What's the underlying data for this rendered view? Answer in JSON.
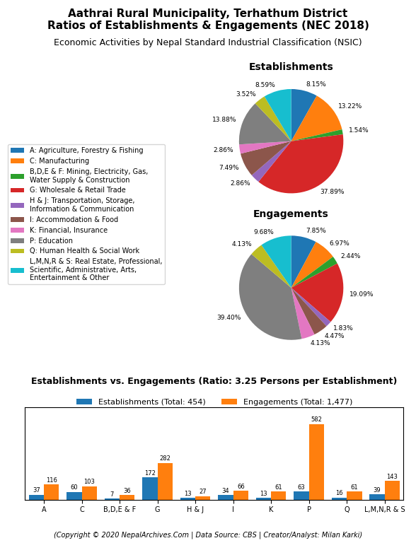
{
  "title": "Aathrai Rural Municipality, Terhathum District\nRatios of Establishments & Engagements (NEC 2018)",
  "subtitle": "Economic Activities by Nepal Standard Industrial Classification (NSIC)",
  "annotations": [
    "(Copyright © 2020 NepalArchives.Com | Data Source: CBS | Creator/Analyst: Milan Karki)"
  ],
  "chart_data": [
    {
      "type": "pie",
      "title": "Establishments",
      "categories": [
        "A: Agriculture, Forestry & Fishing",
        "C: Manufacturing",
        "B,D,E & F: Mining, Electricity, Gas,\nWater Supply & Construction",
        "G: Wholesale & Retail Trade",
        "H & J: Transportation, Storage,\nInformation & Communication",
        "I: Accommodation & Food",
        "K: Financial, Insurance",
        "P: Education",
        "Q: Human Health & Social Work",
        "L,M,N,R & S: Real Estate, Professional,\nScientific, Administrative, Arts,\nEntertainment & Other"
      ],
      "values": [
        8.15,
        13.22,
        1.54,
        37.89,
        2.86,
        7.49,
        2.86,
        13.88,
        3.52,
        8.59
      ],
      "value_labels": [
        "8.15%",
        "13.22%",
        "1.54%",
        "37.89%",
        "2.86%",
        "7.49%",
        "2.86%",
        "13.88%",
        "3.52%",
        "8.59%"
      ],
      "data_labels": true,
      "legend": "center left"
    },
    {
      "type": "pie",
      "title": "Engagements",
      "categories": [
        "A: Agriculture, Forestry & Fishing",
        "C: Manufacturing",
        "B,D,E & F: Mining, Electricity, Gas,\nWater Supply & Construction",
        "G: Wholesale & Retail Trade",
        "H & J: Transportation, Storage,\nInformation & Communication",
        "I: Accommodation & Food",
        "K: Financial, Insurance",
        "P: Education",
        "Q: Human Health & Social Work",
        "L,M,N,R & S: Real Estate, Professional,\nScientific, Administrative, Arts,\nEntertainment & Other"
      ],
      "values": [
        7.85,
        6.97,
        2.44,
        19.09,
        1.83,
        4.47,
        4.13,
        39.4,
        4.13,
        9.68
      ],
      "value_labels": [
        "7.85%",
        "6.97%",
        "2.44%",
        "19.09%",
        "1.83%",
        "4.47%",
        "4.13%",
        "39.40%",
        "4.13%",
        "9.68%"
      ],
      "data_labels": true
    },
    {
      "type": "bar",
      "title": "Establishments vs. Engagements (Ratio: 3.25 Persons per Establishment)",
      "categories": [
        "A",
        "C",
        "B,D,E & F",
        "G",
        "H & J",
        "I",
        "K",
        "P",
        "Q",
        "L,M,N,R & S"
      ],
      "series": [
        {
          "name": "Establishments (Total: 454)",
          "values": [
            37,
            60,
            7,
            172,
            13,
            34,
            13,
            63,
            16,
            39
          ]
        },
        {
          "name": "Engagements (Total: 1,477)",
          "values": [
            116,
            103,
            36,
            282,
            27,
            66,
            61,
            582,
            61,
            143
          ]
        }
      ],
      "ylim": [
        0,
        710.04
      ],
      "yticks": [],
      "tick_labels": "x",
      "data_labels": true,
      "legend": "upper center"
    }
  ]
}
